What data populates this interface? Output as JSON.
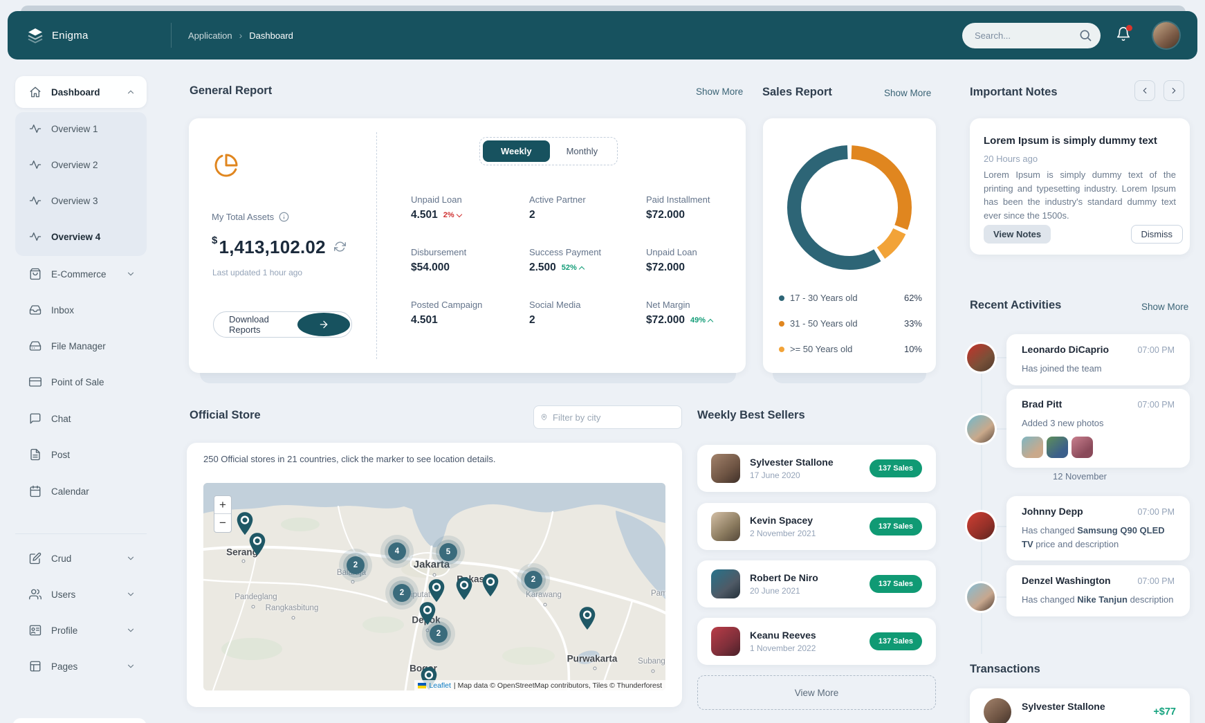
{
  "app": {
    "name": "Enigma"
  },
  "topbar": {
    "breadcrumb": {
      "section": "Application",
      "separator": "›",
      "page": "Dashboard"
    },
    "search": {
      "placeholder": "Search..."
    }
  },
  "sidebar": {
    "dashboard": {
      "label": "Dashboard"
    },
    "overview": [
      "Overview 1",
      "Overview 2",
      "Overview 3",
      "Overview 4"
    ],
    "menu": [
      "E-Commerce",
      "Inbox",
      "File Manager",
      "Point of Sale",
      "Chat",
      "Post",
      "Calendar"
    ],
    "menu2": [
      "Crud",
      "Users",
      "Profile",
      "Pages"
    ]
  },
  "general_report": {
    "title": "General Report",
    "show_more": "Show More",
    "assets": {
      "label": "My Total Assets",
      "currency": "$",
      "amount": "1,413,102.02",
      "updated": "Last updated 1 hour ago",
      "download_label": "Download Reports"
    },
    "toggle": {
      "weekly": "Weekly",
      "monthly": "Monthly",
      "active": "Weekly"
    },
    "stats": [
      {
        "label": "Unpaid Loan",
        "value": "4.501",
        "delta": "2%",
        "trend": "down"
      },
      {
        "label": "Active Partner",
        "value": "2"
      },
      {
        "label": "Paid Installment",
        "value": "$72.000"
      },
      {
        "label": "Disbursement",
        "value": "$54.000"
      },
      {
        "label": "Success Payment",
        "value": "2.500",
        "delta": "52%",
        "trend": "up"
      },
      {
        "label": "Unpaid Loan",
        "value": "$72.000"
      },
      {
        "label": "Posted Campaign",
        "value": "4.501"
      },
      {
        "label": "Social Media",
        "value": "2"
      },
      {
        "label": "Net Margin",
        "value": "$72.000",
        "delta": "49%",
        "trend": "up"
      }
    ]
  },
  "sales_report": {
    "title": "Sales Report",
    "show_more": "Show More"
  },
  "chart_data": {
    "type": "pie",
    "donut": true,
    "title": "Sales Report",
    "labels": [
      "17 - 30 Years old",
      "31 - 50 Years old",
      ">= 50 Years old"
    ],
    "values": [
      62,
      33,
      10
    ],
    "display_values": [
      "62%",
      "33%",
      "10%"
    ],
    "colors": [
      "#2d6576",
      "#e0861f",
      "#f2a338"
    ],
    "legend_position": "bottom"
  },
  "official_store": {
    "title": "Official Store",
    "filter_placeholder": "Filter by city",
    "description": "250 Official stores in 21 countries, click the marker to see location details.",
    "map": {
      "zoom_in": "+",
      "zoom_out": "−",
      "cities": [
        "Serang",
        "Balaraja",
        "Jakarta",
        "Bekasi",
        "Karawang",
        "Pandeglang",
        "Rangkasbitung",
        "Ciputat",
        "Depok",
        "Bogor",
        "Purwakarta",
        "Subang",
        "Pama"
      ],
      "clusters": [
        "2",
        "4",
        "5",
        "2",
        "2",
        "2"
      ],
      "attribution": {
        "leaflet": "Leaflet",
        "rest": "| Map data © OpenStreetMap contributors, Tiles © Thunderforest"
      }
    }
  },
  "best_sellers": {
    "title": "Weekly Best Sellers",
    "items": [
      {
        "name": "Sylvester Stallone",
        "date": "17 June 2020",
        "badge": "137 Sales"
      },
      {
        "name": "Kevin Spacey",
        "date": "2 November 2021",
        "badge": "137 Sales"
      },
      {
        "name": "Robert De Niro",
        "date": "20 June 2021",
        "badge": "137 Sales"
      },
      {
        "name": "Keanu Reeves",
        "date": "1 November 2022",
        "badge": "137 Sales"
      }
    ],
    "view_more": "View More"
  },
  "important_notes": {
    "title": "Important Notes",
    "note": {
      "title": "Lorem Ipsum is simply dummy text",
      "time": "20 Hours ago",
      "body": "Lorem Ipsum is simply dummy text of the printing and typesetting industry. Lorem Ipsum has been the industry's standard dummy text ever since the 1500s.",
      "view_notes": "View Notes",
      "dismiss": "Dismiss"
    }
  },
  "recent_activities": {
    "title": "Recent Activities",
    "show_more": "Show More",
    "date_divider": "12 November",
    "items": [
      {
        "name": "Leonardo DiCaprio",
        "time": "07:00 PM",
        "text": "Has joined the team"
      },
      {
        "name": "Brad Pitt",
        "time": "07:00 PM",
        "text": "Added 3 new photos"
      },
      {
        "name": "Johnny Depp",
        "time": "07:00 PM",
        "text_prefix": "Has changed ",
        "text_strong": "Samsung Q90 QLED TV",
        "text_suffix": " price and description"
      },
      {
        "name": "Denzel Washington",
        "time": "07:00 PM",
        "text_prefix": "Has changed ",
        "text_strong": "Nike Tanjun",
        "text_suffix": " description"
      }
    ]
  },
  "transactions": {
    "title": "Transactions",
    "items": [
      {
        "name": "Sylvester Stallone",
        "amount": "+$77"
      }
    ]
  }
}
